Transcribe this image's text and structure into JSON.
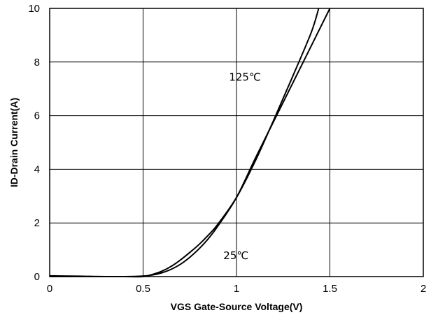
{
  "chart_data": {
    "type": "line",
    "title": "",
    "xlabel": "VGS Gate-Source Voltage(V)",
    "ylabel": "ID-Drain Current(A)",
    "xlim": [
      0,
      2
    ],
    "ylim": [
      0,
      10
    ],
    "x_ticks": [
      "0",
      "0.5",
      "1",
      "1.5",
      "2"
    ],
    "y_ticks": [
      "0",
      "2",
      "4",
      "6",
      "8",
      "10"
    ],
    "grid": true,
    "annotations": [
      "125℃",
      "25℃"
    ],
    "series": [
      {
        "label": "125℃",
        "x": [
          0,
          0.1,
          0.2,
          0.3,
          0.4,
          0.5,
          0.55,
          0.6,
          0.65,
          0.7,
          0.75,
          0.8,
          0.85,
          0.9,
          1.0,
          1.1,
          1.2,
          1.3,
          1.4,
          1.44
        ],
        "y": [
          0.03,
          0.02,
          0.01,
          0.0,
          0.0,
          0.0,
          0.08,
          0.2,
          0.38,
          0.62,
          0.9,
          1.2,
          1.55,
          1.95,
          2.95,
          4.3,
          5.85,
          7.45,
          9.1,
          10.0
        ]
      },
      {
        "label": "25℃",
        "x": [
          0,
          0.2,
          0.4,
          0.5,
          0.55,
          0.6,
          0.65,
          0.7,
          0.75,
          0.8,
          0.85,
          0.9,
          1.0,
          1.1,
          1.2,
          1.3,
          1.4,
          1.5
        ],
        "y": [
          0.0,
          0.0,
          0.0,
          0.02,
          0.06,
          0.14,
          0.27,
          0.46,
          0.72,
          1.04,
          1.42,
          1.88,
          2.95,
          4.4,
          5.8,
          7.2,
          8.6,
          10.0
        ]
      }
    ]
  }
}
